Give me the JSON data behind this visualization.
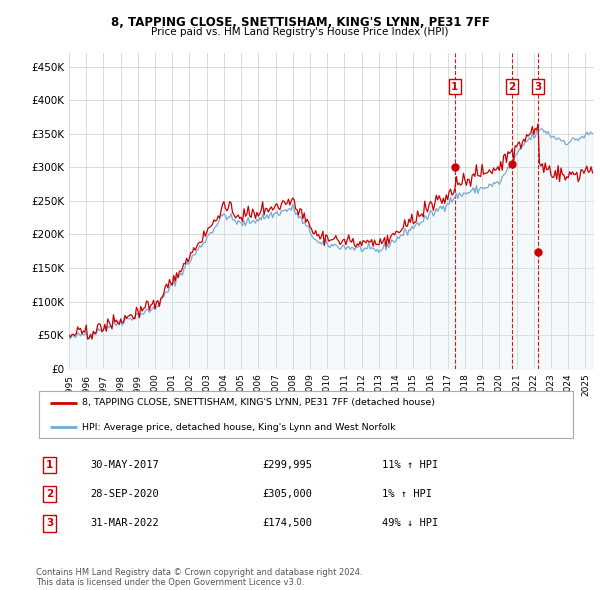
{
  "title": "8, TAPPING CLOSE, SNETTISHAM, KING'S LYNN, PE31 7FF",
  "subtitle": "Price paid vs. HM Land Registry's House Price Index (HPI)",
  "ylabel_ticks": [
    "£0",
    "£50K",
    "£100K",
    "£150K",
    "£200K",
    "£250K",
    "£300K",
    "£350K",
    "£400K",
    "£450K"
  ],
  "ytick_values": [
    0,
    50000,
    100000,
    150000,
    200000,
    250000,
    300000,
    350000,
    400000,
    450000
  ],
  "ylim": [
    0,
    470000
  ],
  "xlim_start": 1995.0,
  "xlim_end": 2025.5,
  "hpi_color": "#7aaad4",
  "hpi_fill_color": "#d6e8f5",
  "price_color": "#cc0000",
  "transaction_color": "#cc0000",
  "dashed_line_color": "#cc0000",
  "background_color": "#ffffff",
  "grid_color": "#cccccc",
  "transactions": [
    {
      "date": 2017.41,
      "price": 299995,
      "label": "1"
    },
    {
      "date": 2020.75,
      "price": 305000,
      "label": "2"
    },
    {
      "date": 2022.25,
      "price": 174500,
      "label": "3"
    }
  ],
  "legend_entries": [
    "8, TAPPING CLOSE, SNETTISHAM, KING'S LYNN, PE31 7FF (detached house)",
    "HPI: Average price, detached house, King's Lynn and West Norfolk"
  ],
  "table_rows": [
    {
      "num": "1",
      "date": "30-MAY-2017",
      "price": "£299,995",
      "change": "11% ↑ HPI"
    },
    {
      "num": "2",
      "date": "28-SEP-2020",
      "price": "£305,000",
      "change": "1% ↑ HPI"
    },
    {
      "num": "3",
      "date": "31-MAR-2022",
      "price": "£174,500",
      "change": "49% ↓ HPI"
    }
  ],
  "footer": "Contains HM Land Registry data © Crown copyright and database right 2024.\nThis data is licensed under the Open Government Licence v3.0."
}
